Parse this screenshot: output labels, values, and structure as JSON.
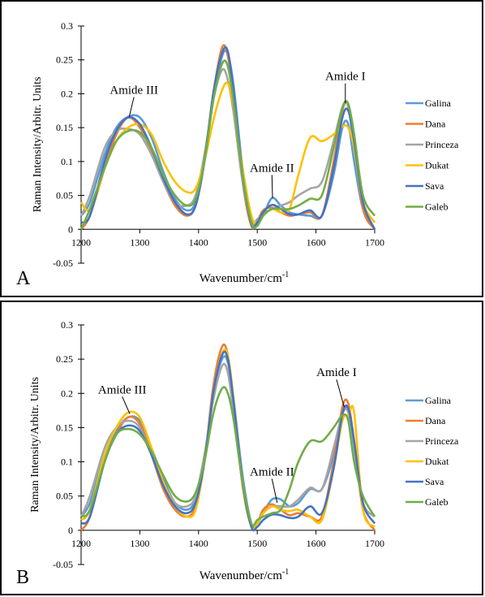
{
  "chart_data": [
    {
      "type": "line",
      "panel_label": "A",
      "xlabel": "Wavenumber/cm",
      "xlabel_sup": "-1",
      "ylabel": "Raman Intensity/Arbitr. Units",
      "xlim": [
        1200,
        1700
      ],
      "ylim": [
        -0.05,
        0.3
      ],
      "xticks": [
        "1200",
        "1300",
        "1400",
        "1500",
        "1600",
        "1700"
      ],
      "yticks": [
        "-0.05",
        "0",
        "0.05",
        "0.1",
        "0.15",
        "0.2",
        "0.25",
        "0.3"
      ],
      "grid": false,
      "legend_position": "right",
      "annotations": [
        {
          "text": "Amide III",
          "label_x": 1290,
          "label_y": 0.2,
          "point_x": 1282,
          "point_y": 0.166
        },
        {
          "text": "Amide II",
          "label_x": 1525,
          "label_y": 0.085,
          "point_x": 1526,
          "point_y": 0.046
        },
        {
          "text": "Amide I",
          "label_x": 1650,
          "label_y": 0.22,
          "point_x": 1650,
          "point_y": 0.186
        }
      ],
      "series": [
        {
          "name": "Galina",
          "color": "#5b9bd5",
          "x": [
            1200,
            1215,
            1240,
            1260,
            1280,
            1300,
            1320,
            1340,
            1360,
            1380,
            1395,
            1410,
            1425,
            1440,
            1450,
            1460,
            1475,
            1490,
            1500,
            1510,
            1525,
            1540,
            1555,
            1570,
            1590,
            1610,
            1630,
            1645,
            1655,
            1665,
            1680,
            1700
          ],
          "y": [
            0.02,
            0.04,
            0.11,
            0.15,
            0.166,
            0.165,
            0.135,
            0.085,
            0.045,
            0.028,
            0.04,
            0.1,
            0.19,
            0.255,
            0.258,
            0.21,
            0.09,
            0.012,
            0.008,
            0.02,
            0.046,
            0.035,
            0.025,
            0.022,
            0.02,
            0.02,
            0.08,
            0.15,
            0.155,
            0.1,
            0.03,
            0.0
          ]
        },
        {
          "name": "Dana",
          "color": "#ed7d31",
          "x": [
            1200,
            1215,
            1240,
            1260,
            1280,
            1300,
            1320,
            1340,
            1360,
            1380,
            1395,
            1410,
            1425,
            1440,
            1450,
            1460,
            1475,
            1490,
            1500,
            1510,
            1525,
            1540,
            1555,
            1570,
            1590,
            1610,
            1630,
            1645,
            1655,
            1665,
            1680,
            1700
          ],
          "y": [
            0.0,
            0.02,
            0.09,
            0.14,
            0.165,
            0.15,
            0.115,
            0.07,
            0.035,
            0.02,
            0.035,
            0.1,
            0.2,
            0.268,
            0.255,
            0.19,
            0.07,
            0.005,
            0.012,
            0.028,
            0.032,
            0.025,
            0.02,
            0.022,
            0.025,
            0.02,
            0.1,
            0.175,
            0.185,
            0.13,
            0.03,
            0.0
          ]
        },
        {
          "name": "Princeza",
          "color": "#a5a5a5",
          "x": [
            1200,
            1215,
            1240,
            1260,
            1280,
            1300,
            1320,
            1340,
            1360,
            1380,
            1395,
            1410,
            1425,
            1440,
            1450,
            1460,
            1475,
            1490,
            1500,
            1510,
            1525,
            1540,
            1555,
            1570,
            1590,
            1610,
            1630,
            1645,
            1655,
            1665,
            1680,
            1700
          ],
          "y": [
            0.02,
            0.05,
            0.12,
            0.145,
            0.148,
            0.14,
            0.11,
            0.07,
            0.04,
            0.035,
            0.05,
            0.11,
            0.19,
            0.235,
            0.22,
            0.17,
            0.07,
            0.01,
            0.015,
            0.022,
            0.03,
            0.035,
            0.04,
            0.05,
            0.06,
            0.07,
            0.13,
            0.18,
            0.18,
            0.12,
            0.04,
            0.01
          ]
        },
        {
          "name": "Dukat",
          "color": "#ffc000",
          "x": [
            1200,
            1215,
            1240,
            1260,
            1280,
            1300,
            1320,
            1340,
            1360,
            1380,
            1395,
            1410,
            1425,
            1440,
            1450,
            1460,
            1475,
            1490,
            1500,
            1510,
            1525,
            1540,
            1555,
            1570,
            1590,
            1610,
            1630,
            1645,
            1655,
            1665,
            1680,
            1700
          ],
          "y": [
            0.04,
            0.03,
            0.09,
            0.13,
            0.15,
            0.155,
            0.14,
            0.1,
            0.07,
            0.055,
            0.06,
            0.1,
            0.16,
            0.205,
            0.215,
            0.18,
            0.09,
            0.02,
            0.01,
            0.02,
            0.03,
            0.025,
            0.03,
            0.08,
            0.135,
            0.13,
            0.14,
            0.152,
            0.15,
            0.12,
            0.04,
            0.01
          ]
        },
        {
          "name": "Sava",
          "color": "#4472c4",
          "x": [
            1200,
            1215,
            1240,
            1260,
            1280,
            1300,
            1320,
            1340,
            1360,
            1380,
            1395,
            1410,
            1425,
            1440,
            1450,
            1460,
            1475,
            1490,
            1500,
            1510,
            1525,
            1540,
            1555,
            1570,
            1590,
            1610,
            1630,
            1645,
            1655,
            1665,
            1680,
            1700
          ],
          "y": [
            0.01,
            0.02,
            0.1,
            0.145,
            0.165,
            0.155,
            0.12,
            0.075,
            0.04,
            0.022,
            0.035,
            0.1,
            0.2,
            0.26,
            0.262,
            0.2,
            0.08,
            0.008,
            0.01,
            0.025,
            0.036,
            0.03,
            0.022,
            0.022,
            0.028,
            0.02,
            0.09,
            0.165,
            0.175,
            0.13,
            0.04,
            0.0
          ]
        },
        {
          "name": "Galeb",
          "color": "#70ad47",
          "x": [
            1200,
            1215,
            1240,
            1260,
            1280,
            1300,
            1320,
            1340,
            1360,
            1380,
            1395,
            1410,
            1425,
            1440,
            1450,
            1460,
            1475,
            1490,
            1500,
            1510,
            1525,
            1540,
            1555,
            1570,
            1590,
            1610,
            1630,
            1645,
            1655,
            1665,
            1680,
            1700
          ],
          "y": [
            0.0,
            0.03,
            0.09,
            0.13,
            0.145,
            0.143,
            0.12,
            0.08,
            0.05,
            0.035,
            0.045,
            0.1,
            0.19,
            0.244,
            0.24,
            0.185,
            0.08,
            0.01,
            0.005,
            0.02,
            0.03,
            0.03,
            0.03,
            0.035,
            0.045,
            0.05,
            0.12,
            0.18,
            0.185,
            0.14,
            0.05,
            0.02
          ]
        }
      ]
    },
    {
      "type": "line",
      "panel_label": "B",
      "xlabel": "Wavenumber/cm",
      "xlabel_sup": "-1",
      "ylabel": "Raman Intensity/Arbitr. Units",
      "xlim": [
        1200,
        1700
      ],
      "ylim": [
        -0.05,
        0.3
      ],
      "xticks": [
        "1200",
        "1300",
        "1400",
        "1500",
        "1600",
        "1700"
      ],
      "yticks": [
        "-0.05",
        "0",
        "0.05",
        "0.1",
        "0.15",
        "0.2",
        "0.25",
        "0.3"
      ],
      "grid": false,
      "legend_position": "right",
      "annotations": [
        {
          "text": "Amide III",
          "label_x": 1270,
          "label_y": 0.2,
          "point_x": 1283,
          "point_y": 0.17
        },
        {
          "text": "Amide II",
          "label_x": 1525,
          "label_y": 0.08,
          "point_x": 1534,
          "point_y": 0.04
        },
        {
          "text": "Amide I",
          "label_x": 1635,
          "label_y": 0.225,
          "point_x": 1648,
          "point_y": 0.18
        }
      ],
      "series": [
        {
          "name": "Galina",
          "color": "#5b9bd5",
          "x": [
            1200,
            1215,
            1240,
            1260,
            1280,
            1300,
            1320,
            1340,
            1360,
            1380,
            1395,
            1410,
            1425,
            1440,
            1450,
            1460,
            1475,
            1490,
            1500,
            1510,
            1525,
            1540,
            1555,
            1570,
            1590,
            1610,
            1630,
            1645,
            1655,
            1665,
            1680,
            1700
          ],
          "y": [
            0.02,
            0.04,
            0.11,
            0.145,
            0.165,
            0.16,
            0.12,
            0.075,
            0.04,
            0.03,
            0.045,
            0.1,
            0.2,
            0.25,
            0.245,
            0.19,
            0.08,
            0.01,
            0.01,
            0.025,
            0.045,
            0.045,
            0.035,
            0.04,
            0.06,
            0.06,
            0.11,
            0.17,
            0.175,
            0.12,
            0.04,
            0.02
          ]
        },
        {
          "name": "Dana",
          "color": "#ed7d31",
          "x": [
            1200,
            1215,
            1240,
            1260,
            1280,
            1300,
            1320,
            1340,
            1360,
            1380,
            1395,
            1410,
            1425,
            1440,
            1450,
            1460,
            1475,
            1490,
            1500,
            1510,
            1525,
            1540,
            1555,
            1570,
            1590,
            1610,
            1630,
            1645,
            1655,
            1665,
            1680,
            1700
          ],
          "y": [
            0.0,
            0.02,
            0.1,
            0.14,
            0.165,
            0.155,
            0.11,
            0.06,
            0.03,
            0.02,
            0.035,
            0.1,
            0.21,
            0.268,
            0.255,
            0.18,
            0.065,
            0.005,
            0.01,
            0.03,
            0.038,
            0.03,
            0.022,
            0.025,
            0.02,
            0.02,
            0.1,
            0.18,
            0.185,
            0.13,
            0.03,
            0.0
          ]
        },
        {
          "name": "Princeza",
          "color": "#a5a5a5",
          "x": [
            1200,
            1215,
            1240,
            1260,
            1280,
            1300,
            1320,
            1340,
            1360,
            1380,
            1395,
            1410,
            1425,
            1440,
            1450,
            1460,
            1475,
            1490,
            1500,
            1510,
            1525,
            1540,
            1555,
            1570,
            1590,
            1610,
            1630,
            1645,
            1655,
            1665,
            1680,
            1700
          ],
          "y": [
            0.02,
            0.05,
            0.12,
            0.15,
            0.16,
            0.15,
            0.11,
            0.07,
            0.04,
            0.035,
            0.05,
            0.11,
            0.19,
            0.24,
            0.23,
            0.17,
            0.07,
            0.01,
            0.012,
            0.025,
            0.035,
            0.035,
            0.035,
            0.045,
            0.062,
            0.06,
            0.12,
            0.17,
            0.172,
            0.12,
            0.04,
            0.02
          ]
        },
        {
          "name": "Dukat",
          "color": "#ffc000",
          "x": [
            1200,
            1215,
            1240,
            1260,
            1280,
            1300,
            1320,
            1340,
            1360,
            1380,
            1395,
            1410,
            1425,
            1440,
            1450,
            1460,
            1475,
            1490,
            1500,
            1510,
            1525,
            1540,
            1555,
            1570,
            1590,
            1610,
            1630,
            1645,
            1655,
            1665,
            1680,
            1700
          ],
          "y": [
            0.015,
            0.03,
            0.11,
            0.15,
            0.172,
            0.165,
            0.12,
            0.07,
            0.035,
            0.02,
            0.03,
            0.1,
            0.2,
            0.258,
            0.255,
            0.19,
            0.07,
            0.005,
            0.01,
            0.025,
            0.035,
            0.03,
            0.028,
            0.03,
            0.02,
            0.015,
            0.09,
            0.16,
            0.168,
            0.172,
            0.03,
            0.005
          ]
        },
        {
          "name": "Sava",
          "color": "#4472c4",
          "x": [
            1200,
            1215,
            1240,
            1260,
            1280,
            1300,
            1320,
            1340,
            1360,
            1380,
            1395,
            1410,
            1425,
            1440,
            1450,
            1460,
            1475,
            1490,
            1500,
            1510,
            1525,
            1540,
            1555,
            1570,
            1590,
            1610,
            1630,
            1645,
            1655,
            1665,
            1680,
            1700
          ],
          "y": [
            0.01,
            0.02,
            0.1,
            0.14,
            0.153,
            0.145,
            0.11,
            0.065,
            0.035,
            0.025,
            0.04,
            0.1,
            0.2,
            0.256,
            0.25,
            0.185,
            0.07,
            0.005,
            0.005,
            0.015,
            0.023,
            0.022,
            0.018,
            0.02,
            0.035,
            0.025,
            0.09,
            0.17,
            0.178,
            0.13,
            0.04,
            0.01
          ]
        },
        {
          "name": "Galeb",
          "color": "#70ad47",
          "x": [
            1200,
            1215,
            1240,
            1260,
            1280,
            1300,
            1320,
            1340,
            1360,
            1380,
            1395,
            1410,
            1425,
            1440,
            1450,
            1460,
            1475,
            1490,
            1500,
            1510,
            1525,
            1540,
            1555,
            1570,
            1590,
            1610,
            1630,
            1645,
            1655,
            1665,
            1680,
            1700
          ],
          "y": [
            0.02,
            0.03,
            0.1,
            0.14,
            0.148,
            0.14,
            0.115,
            0.08,
            0.05,
            0.042,
            0.055,
            0.1,
            0.17,
            0.207,
            0.2,
            0.16,
            0.07,
            0.01,
            0.015,
            0.02,
            0.025,
            0.03,
            0.06,
            0.1,
            0.13,
            0.13,
            0.15,
            0.168,
            0.16,
            0.1,
            0.05,
            0.02
          ]
        }
      ]
    }
  ]
}
